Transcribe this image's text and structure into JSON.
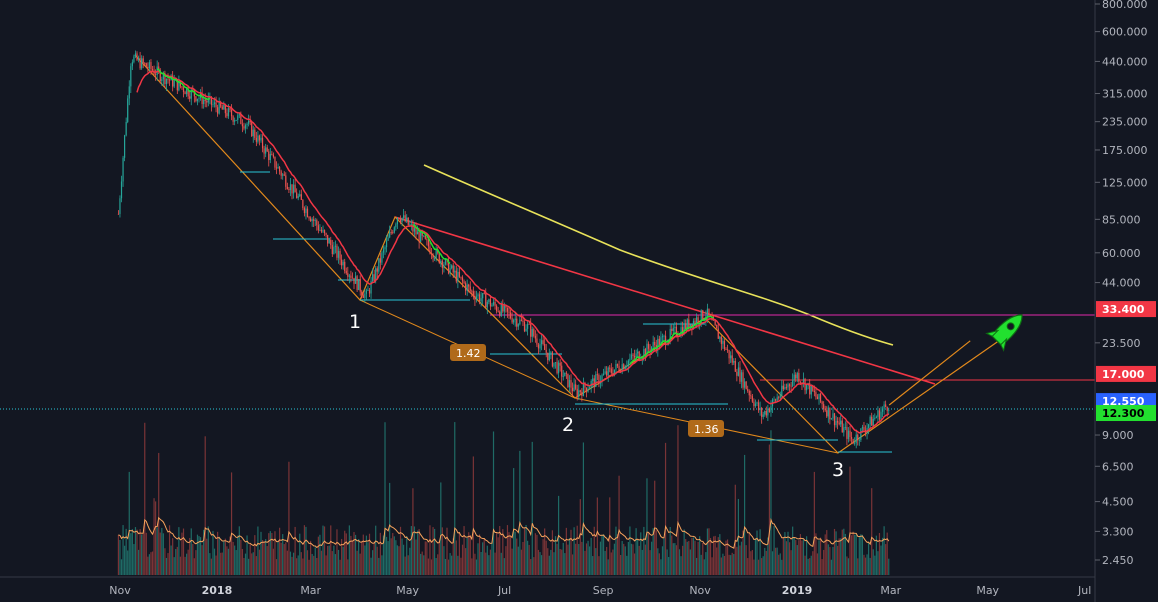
{
  "chart_data": {
    "type": "candlestick",
    "title": "",
    "y_scale": "log",
    "y_tick_labels": [
      "800.000",
      "600.000",
      "440.000",
      "315.000",
      "235.000",
      "175.000",
      "125.000",
      "85.000",
      "60.000",
      "44.000",
      "33.400",
      "23.500",
      "17.000",
      "12.550",
      "12.300",
      "9.000",
      "6.500",
      "4.500",
      "3.300",
      "2.450"
    ],
    "x_tick_labels": [
      "Nov",
      "2018",
      "Mar",
      "May",
      "Jul",
      "Sep",
      "Nov",
      "2019",
      "Mar",
      "May",
      "Jul"
    ],
    "x_tick_bold": [
      "2018",
      "2019"
    ],
    "price_tags": [
      {
        "label": "33.400",
        "bg": "#f23645",
        "fg": "#ffffff"
      },
      {
        "label": "17.000",
        "bg": "#f23645",
        "fg": "#ffffff"
      },
      {
        "label": "12.550",
        "bg": "#2962ff",
        "fg": "#ffffff"
      },
      {
        "label": "12.300",
        "bg": "#22e02f",
        "fg": "#000000"
      }
    ],
    "wave_labels": [
      "1",
      "2",
      "3"
    ],
    "fib_labels": [
      "1.42",
      "1.36"
    ],
    "price_path_approx": [
      {
        "date": "2017-10-31",
        "price": 90
      },
      {
        "date": "2017-11-08",
        "price": 460
      },
      {
        "date": "2017-12-15",
        "price": 320
      },
      {
        "date": "2018-01-20",
        "price": 230
      },
      {
        "date": "2018-03-05",
        "price": 80
      },
      {
        "date": "2018-04-05",
        "price": 38
      },
      {
        "date": "2018-04-25",
        "price": 90
      },
      {
        "date": "2018-06-10",
        "price": 40
      },
      {
        "date": "2018-07-15",
        "price": 28
      },
      {
        "date": "2018-08-15",
        "price": 14
      },
      {
        "date": "2018-11-05",
        "price": 32
      },
      {
        "date": "2018-12-10",
        "price": 11
      },
      {
        "date": "2019-01-01",
        "price": 17
      },
      {
        "date": "2019-02-05",
        "price": 8.5
      },
      {
        "date": "2019-02-28",
        "price": 12.55
      }
    ],
    "projection": {
      "from_date": "2019-02-28",
      "from_price": 12.3,
      "to_date": "2019-04-20",
      "to_price": 24
    },
    "colors": {
      "background": "#131722",
      "up": "#26a69a",
      "down": "#ef5350",
      "ma_fast": "#22e02f",
      "ma_slow": "#f23645",
      "ma_long": "#e8e25a",
      "trend": "#e2891c",
      "resistance": "#f23645",
      "magenta": "#b8278f",
      "cyan": "#29c6d6"
    }
  }
}
